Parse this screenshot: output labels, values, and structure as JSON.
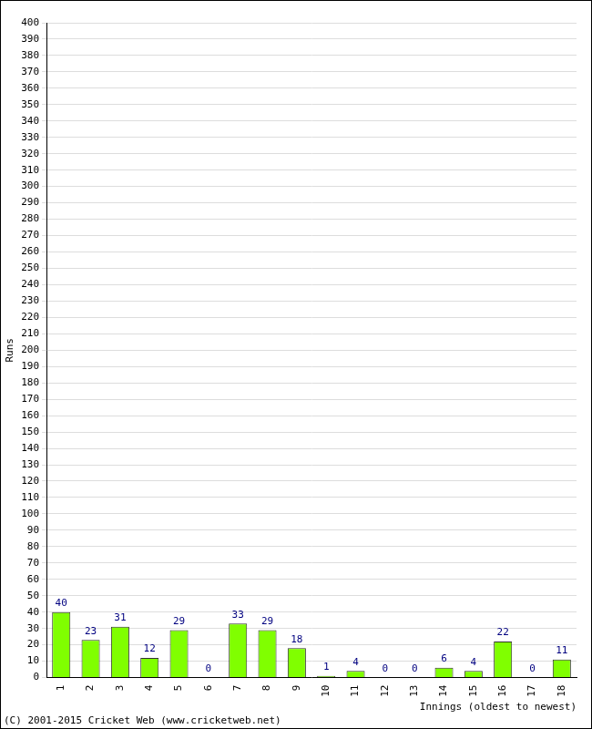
{
  "chart_data": {
    "type": "bar",
    "y_label": "Runs",
    "x_label": "Innings (oldest to newest)",
    "annotations": [
      "(C) 2001-2015 Cricket Web (www.cricketweb.net)"
    ],
    "categories": [
      "1",
      "2",
      "3",
      "4",
      "5",
      "6",
      "7",
      "8",
      "9",
      "10",
      "11",
      "12",
      "13",
      "14",
      "15",
      "16",
      "17",
      "18"
    ],
    "values": [
      40,
      23,
      31,
      12,
      29,
      0,
      33,
      29,
      18,
      1,
      4,
      0,
      0,
      6,
      4,
      22,
      0,
      11
    ],
    "color": "#80ff00",
    "ylim": [
      0,
      400
    ],
    "yticks": [
      0,
      10,
      20,
      30,
      40,
      50,
      60,
      70,
      80,
      90,
      100,
      110,
      120,
      130,
      140,
      150,
      160,
      170,
      180,
      190,
      200,
      210,
      220,
      230,
      240,
      250,
      260,
      270,
      280,
      290,
      300,
      310,
      320,
      330,
      340,
      350,
      360,
      370,
      380,
      390,
      400
    ],
    "grid": true,
    "data_labels": true
  }
}
